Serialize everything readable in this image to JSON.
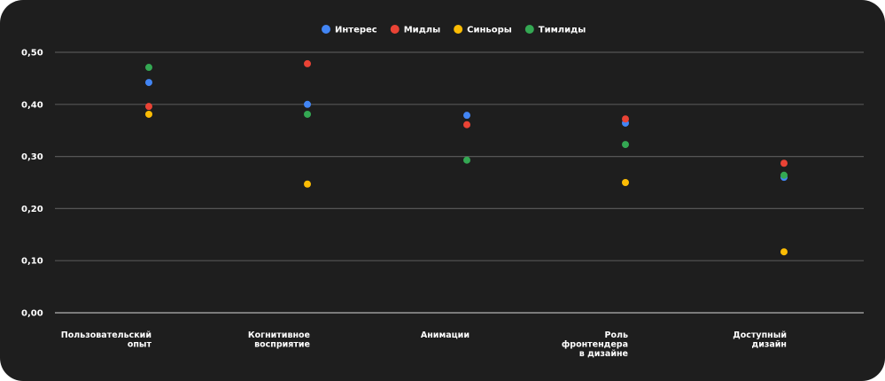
{
  "chart_data": {
    "type": "scatter",
    "categories": [
      [
        "Пользовательский",
        "опыт"
      ],
      [
        "Когнитивное",
        "восприятие"
      ],
      [
        "Анимации"
      ],
      [
        "Роль",
        "фронтендера",
        "в дизайне"
      ],
      [
        "Доступный",
        "дизайн"
      ]
    ],
    "ylim": [
      0,
      0.5
    ],
    "yticks": [
      "0,00",
      "0,10",
      "0,20",
      "0,30",
      "0,40",
      "0,50"
    ],
    "grid": true,
    "legend_position": "top-center",
    "series": [
      {
        "name": "Интерес",
        "color": "#4285f4",
        "values": [
          0.442,
          0.4,
          0.379,
          0.364,
          0.26
        ]
      },
      {
        "name": "Мидлы",
        "color": "#ea4335",
        "values": [
          0.396,
          0.478,
          0.361,
          0.372,
          0.287
        ]
      },
      {
        "name": "Синьоры",
        "color": "#fbbc04",
        "values": [
          0.381,
          0.247,
          null,
          0.25,
          0.117
        ]
      },
      {
        "name": "Тимлиды",
        "color": "#34a853",
        "values": [
          0.471,
          0.381,
          0.293,
          0.323,
          0.264
        ]
      }
    ]
  }
}
